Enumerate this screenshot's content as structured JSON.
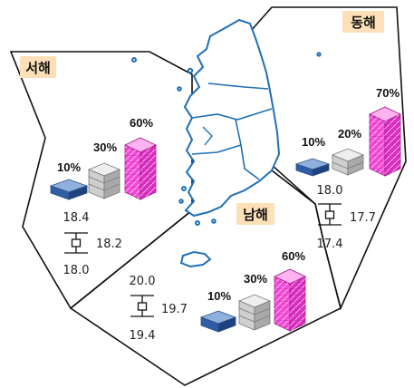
{
  "regions": [
    {
      "name": "서해",
      "shares": [
        {
          "label": "10%",
          "value": 10
        },
        {
          "label": "30%",
          "value": 30
        },
        {
          "label": "60%",
          "value": 60
        }
      ],
      "range": {
        "max": "18.4",
        "mid": "18.2",
        "min": "18.0"
      }
    },
    {
      "name": "동해",
      "shares": [
        {
          "label": "10%",
          "value": 10
        },
        {
          "label": "20%",
          "value": 20
        },
        {
          "label": "70%",
          "value": 70
        }
      ],
      "range": {
        "max": "18.0",
        "mid": "17.7",
        "min": "17.4"
      }
    },
    {
      "name": "남해",
      "shares": [
        {
          "label": "10%",
          "value": 10
        },
        {
          "label": "30%",
          "value": 30
        },
        {
          "label": "60%",
          "value": 60
        }
      ],
      "range": {
        "max": "20.0",
        "mid": "19.7",
        "min": "19.4"
      }
    }
  ],
  "colors": {
    "outline": "#111111",
    "label_bg": "#fde0b8",
    "map_stroke": "#1f6fb5",
    "block_blue": "#5b86c4",
    "block_gray": "#d3d3d3",
    "block_pink": "#f34ad6"
  }
}
